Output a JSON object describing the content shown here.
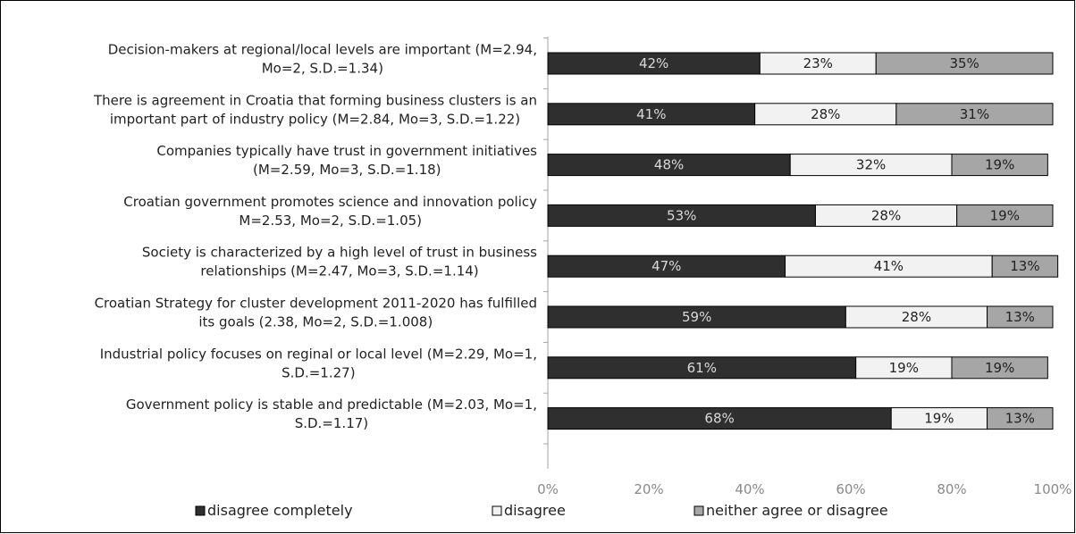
{
  "chart_data": {
    "type": "bar",
    "orientation": "horizontal",
    "stacked": true,
    "categories": [
      [
        "Decision-makers at regional/local levels are important (M=2.94,",
        "Mo=2, S.D.=1.34)"
      ],
      [
        "There is agreement in Croatia that forming business clusters is an",
        "important part of industry policy (M=2.84, Mo=3, S.D.=1.22)"
      ],
      [
        "Companies typically have trust in government initiatives",
        "(M=2.59, Mo=3, S.D.=1.18)"
      ],
      [
        "Croatian government promotes science and innovation policy",
        "M=2.53, Mo=2, S.D.=1.05)"
      ],
      [
        "Society is characterized by a high level of trust in business",
        "relationships (M=2.47, Mo=3, S.D.=1.14)"
      ],
      [
        "Croatian Strategy for cluster development 2011-2020 has fulfilled",
        "its goals (2.38, Mo=2, S.D.=1.008)"
      ],
      [
        "Industrial policy focuses on reginal or local level (M=2.29, Mo=1,",
        "S.D.=1.27)"
      ],
      [
        "Government policy is stable and predictable (M=2.03, Mo=1,",
        "S.D.=1.17)"
      ]
    ],
    "series": [
      {
        "name": "disagree completely",
        "color": "#2f2f2f",
        "label_color": "#d9d9d9",
        "values": [
          42,
          41,
          48,
          53,
          47,
          59,
          61,
          68
        ],
        "labels": [
          "42%",
          "41%",
          "48%",
          "53%",
          "47%",
          "59%",
          "61%",
          "68%"
        ]
      },
      {
        "name": "disagree",
        "color": "#f2f2f2",
        "label_color": "#222222",
        "values": [
          23,
          28,
          32,
          28,
          41,
          28,
          19,
          19
        ],
        "labels": [
          "23%",
          "28%",
          "32%",
          "28%",
          "41%",
          "28%",
          "19%",
          "19%"
        ]
      },
      {
        "name": "neither agree or disagree",
        "color": "#a6a6a6",
        "label_color": "#222222",
        "values": [
          35,
          31,
          19,
          19,
          13,
          13,
          19,
          13
        ],
        "labels": [
          "35%",
          "31%",
          "19%",
          "19%",
          "13%",
          "13%",
          "19%",
          "13%"
        ]
      }
    ],
    "xlim": [
      0,
      100
    ],
    "xticks": [
      "0%",
      "20%",
      "40%",
      "60%",
      "80%",
      "100%"
    ],
    "title": "",
    "xlabel": "",
    "ylabel": "",
    "grid": false,
    "legend_position": "bottom"
  }
}
